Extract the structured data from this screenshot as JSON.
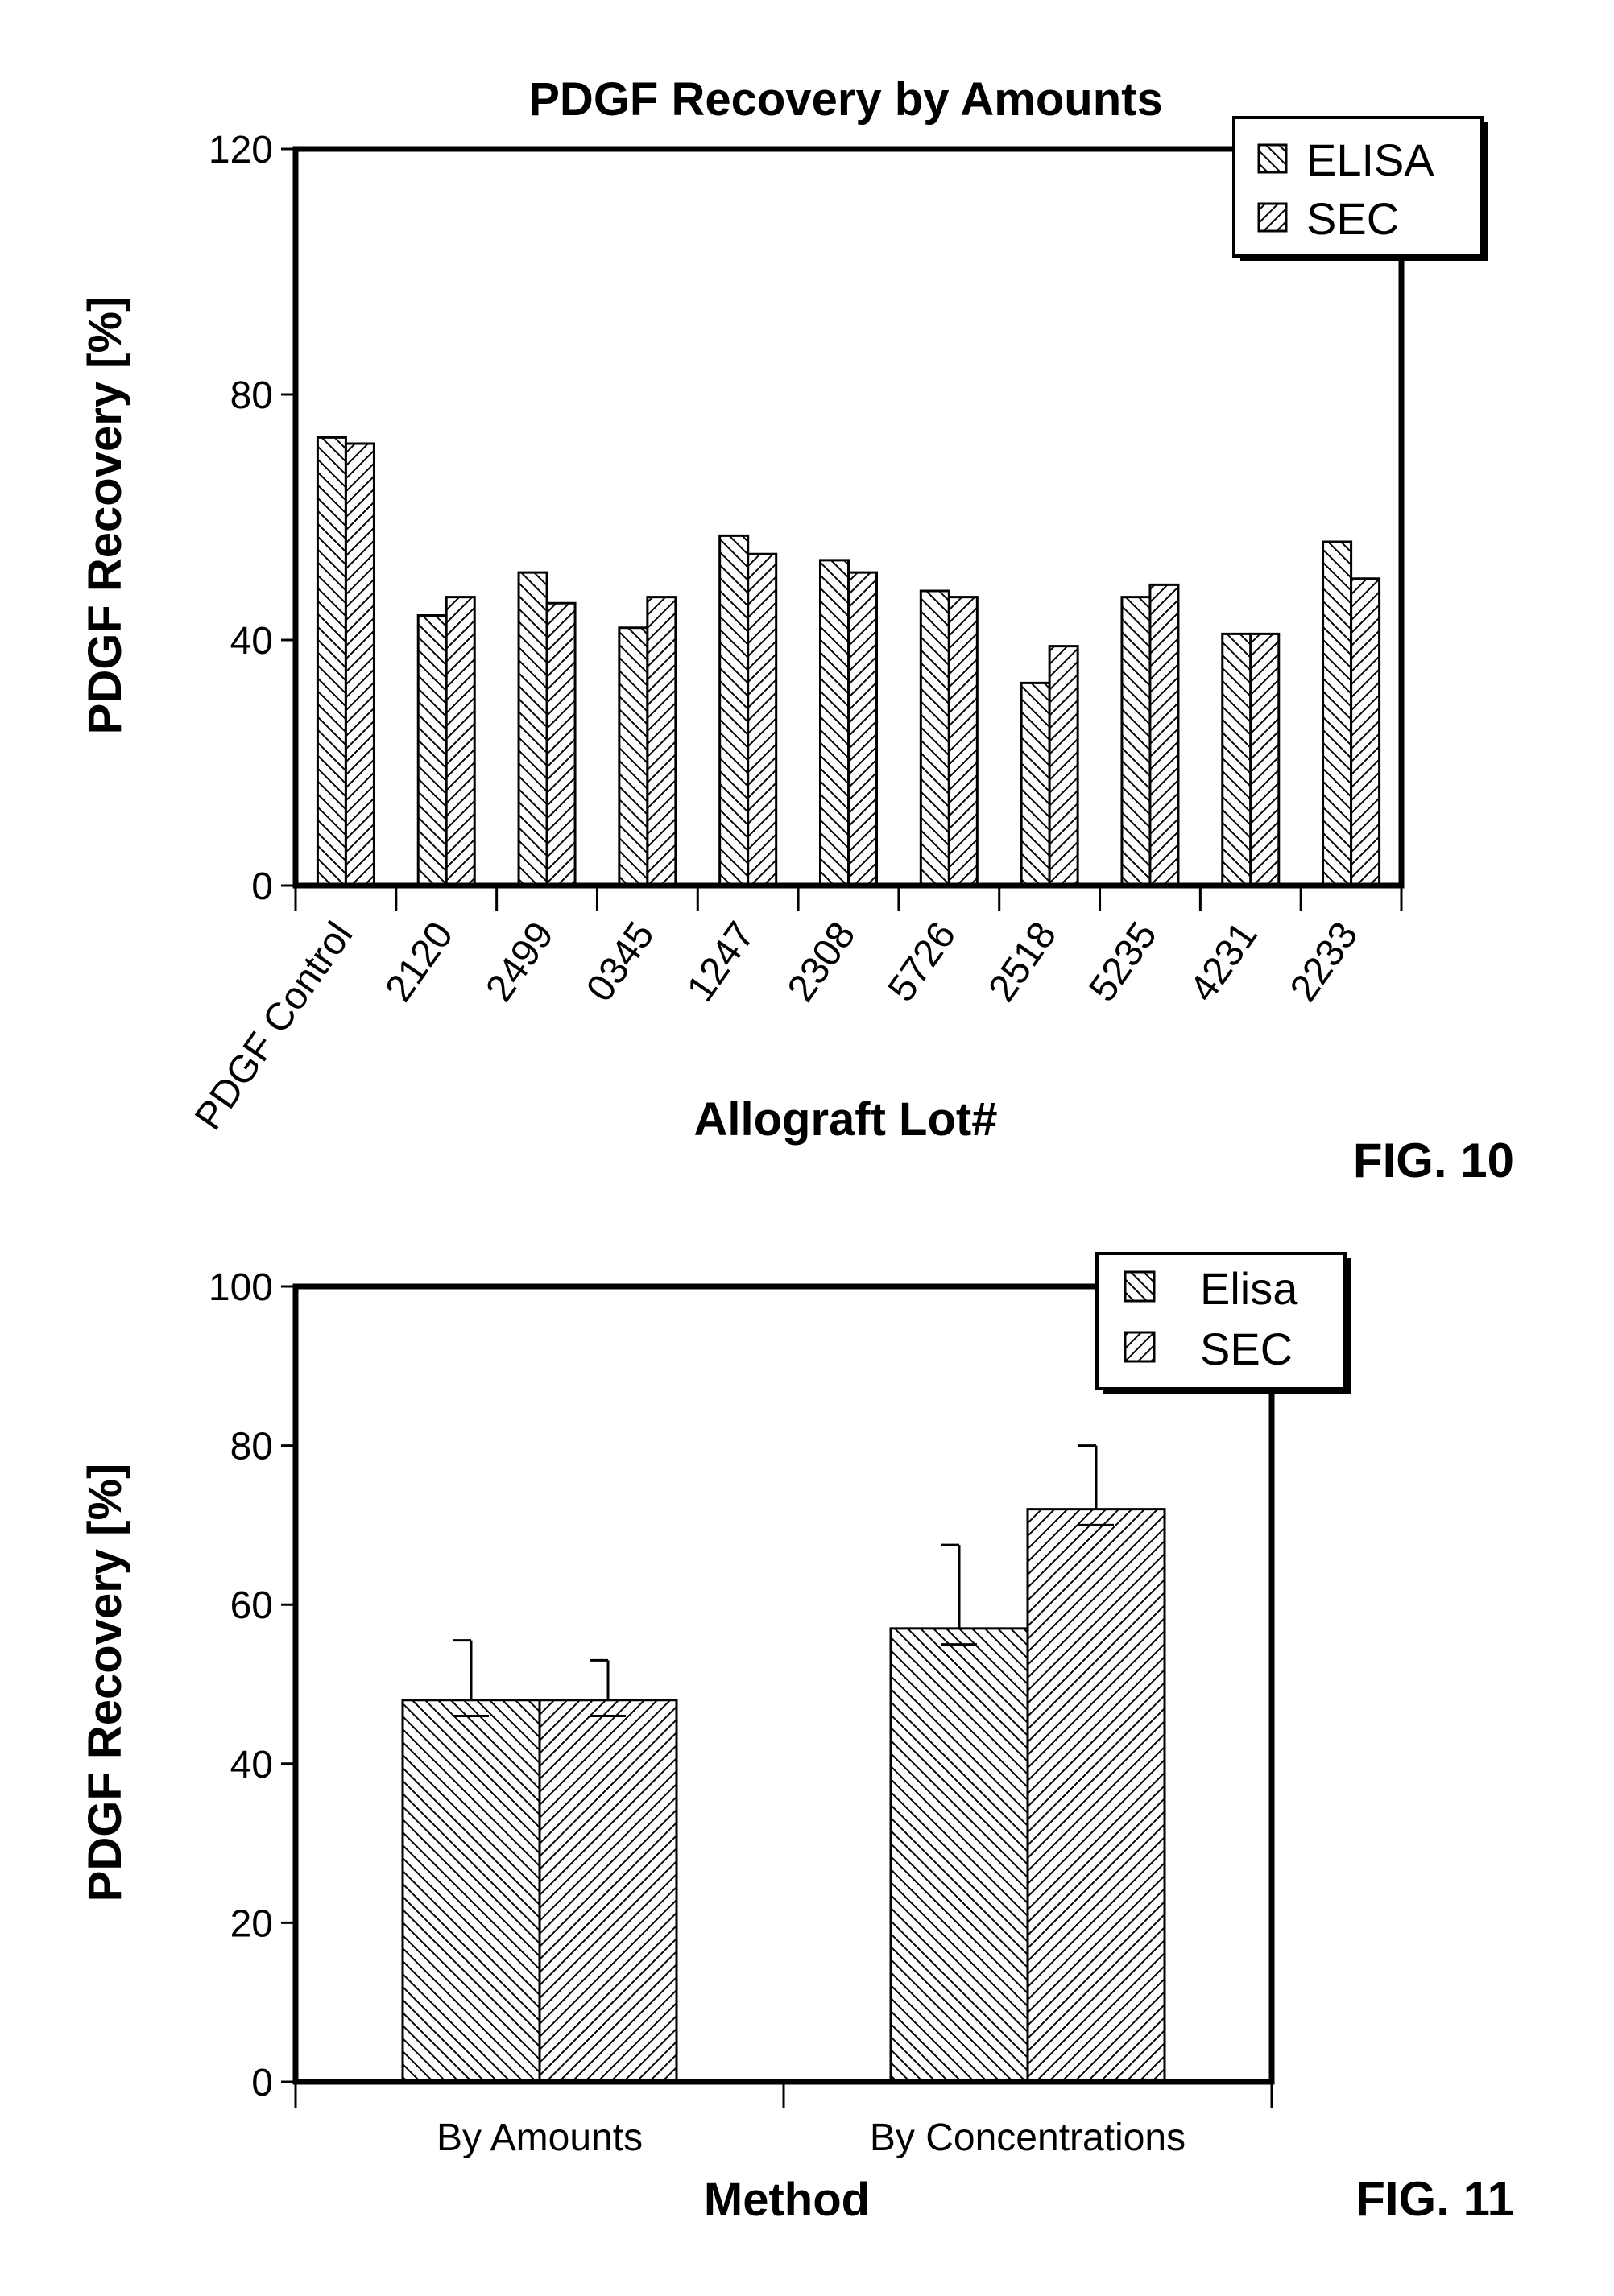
{
  "chart_data": [
    {
      "type": "bar",
      "figure_label": "FIG. 10",
      "title": "PDGF Recovery by Amounts",
      "xlabel": "Allograft Lot#",
      "ylabel": "PDGF Recovery [%]",
      "ylim": [
        0,
        120
      ],
      "yticks": [
        0,
        40,
        80,
        120
      ],
      "grid": false,
      "legend_position": "top-right",
      "categories": [
        "PDGF Control",
        "2120",
        "2499",
        "0345",
        "1247",
        "2308",
        "5726",
        "2518",
        "5235",
        "4231",
        "2233"
      ],
      "series": [
        {
          "name": "ELISA",
          "pattern": "hatch-down",
          "values": [
            73,
            44,
            51,
            42,
            57,
            53,
            48,
            33,
            47,
            41,
            56
          ]
        },
        {
          "name": "SEC",
          "pattern": "hatch-up",
          "values": [
            72,
            47,
            46,
            47,
            54,
            51,
            47,
            39,
            49,
            41,
            50
          ]
        }
      ]
    },
    {
      "type": "bar",
      "figure_label": "FIG. 11",
      "title": "",
      "xlabel": "Method",
      "ylabel": "PDGF Recovery [%]",
      "ylim": [
        0,
        100
      ],
      "yticks": [
        0,
        20,
        40,
        60,
        80,
        100
      ],
      "grid": false,
      "legend_position": "top-right",
      "categories": [
        "By Amounts",
        "By Concentrations"
      ],
      "series": [
        {
          "name": "Elisa",
          "pattern": "hatch-down",
          "values": [
            48,
            57
          ],
          "errors": [
            7.5,
            10.5
          ]
        },
        {
          "name": "SEC",
          "pattern": "hatch-up",
          "values": [
            48,
            72
          ],
          "errors": [
            5,
            8
          ]
        }
      ]
    }
  ]
}
